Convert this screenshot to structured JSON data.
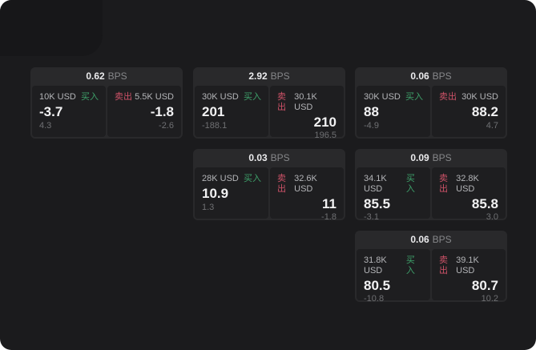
{
  "labels": {
    "buy": "买入",
    "sell": "卖出",
    "bps": "BPS"
  },
  "colors": {
    "window_bg": "#1b1b1d",
    "card_bg": "#29292b",
    "panel_bg": "#1e1e20",
    "buy_green": "#3ea06a",
    "sell_red": "#ce5268",
    "primary_text": "#f2f2f3",
    "muted_text": "#6f7073"
  },
  "cards": [
    {
      "bps": "0.62",
      "buy": {
        "amount": "10K USD",
        "price": "-3.7",
        "delta": "4.3"
      },
      "sell": {
        "amount": "5.5K USD",
        "price": "-1.8",
        "delta": "-2.6"
      }
    },
    {
      "bps": "2.92",
      "buy": {
        "amount": "30K USD",
        "price": "201",
        "delta": "-188.1"
      },
      "sell": {
        "amount": "30.1K USD",
        "price": "210",
        "delta": "196.5"
      }
    },
    {
      "bps": "0.06",
      "buy": {
        "amount": "30K USD",
        "price": "88",
        "delta": "-4.9"
      },
      "sell": {
        "amount": "30K USD",
        "price": "88.2",
        "delta": "4.7"
      }
    },
    {
      "bps": "0.03",
      "buy": {
        "amount": "28K USD",
        "price": "10.9",
        "delta": "1.3"
      },
      "sell": {
        "amount": "32.6K USD",
        "price": "11",
        "delta": "-1.8"
      }
    },
    {
      "bps": "0.09",
      "buy": {
        "amount": "34.1K USD",
        "price": "85.5",
        "delta": "-3.1"
      },
      "sell": {
        "amount": "32.8K USD",
        "price": "85.8",
        "delta": "3.0"
      }
    },
    {
      "bps": "0.06",
      "buy": {
        "amount": "31.8K USD",
        "price": "80.5",
        "delta": "-10.8"
      },
      "sell": {
        "amount": "39.1K USD",
        "price": "80.7",
        "delta": "10.2"
      }
    }
  ]
}
